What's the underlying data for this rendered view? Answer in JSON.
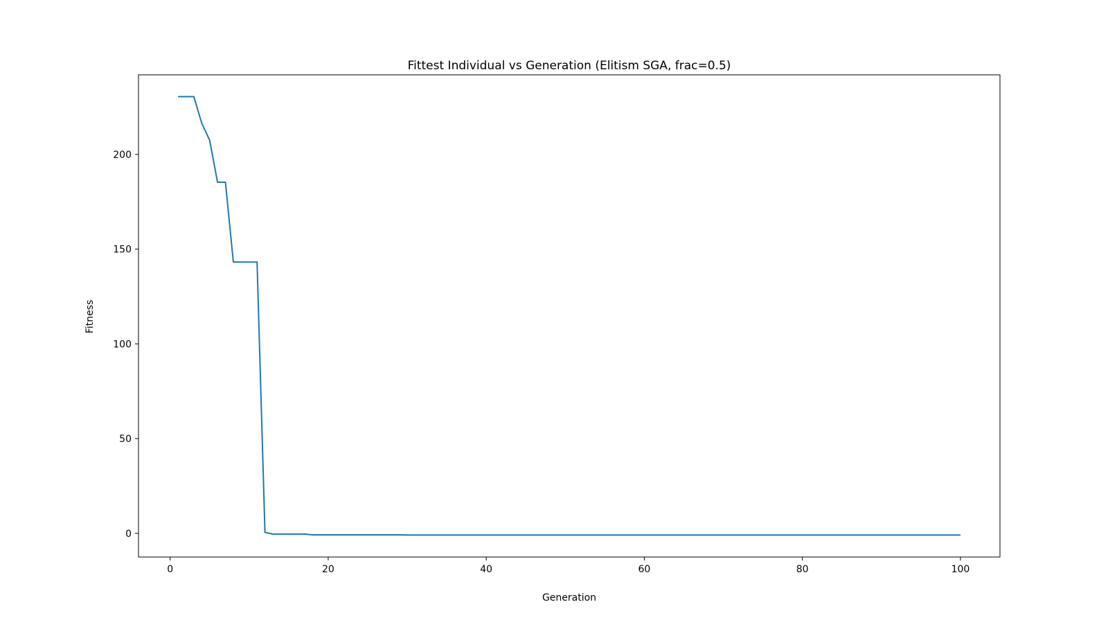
{
  "chart_data": {
    "type": "line",
    "title": "Fittest Individual vs Generation (Elitism SGA, frac=0.5)",
    "xlabel": "Generation",
    "ylabel": "Fitness",
    "xlim": [
      -4,
      105
    ],
    "ylim": [
      -12.5,
      242
    ],
    "xticks": [
      0,
      20,
      40,
      60,
      80,
      100
    ],
    "yticks": [
      0,
      50,
      100,
      150,
      200
    ],
    "grid": false,
    "series": [
      {
        "color": "#1f77b4",
        "x": [
          1,
          2,
          3,
          4,
          5,
          6,
          7,
          8,
          9,
          10,
          11,
          12,
          13,
          14,
          15,
          16,
          17,
          18,
          19,
          20,
          21,
          22,
          23,
          24,
          25,
          26,
          27,
          28,
          29,
          30,
          31,
          32,
          33,
          34,
          35,
          36,
          37,
          38,
          39,
          40,
          41,
          42,
          43,
          44,
          45,
          46,
          47,
          48,
          49,
          50,
          51,
          52,
          53,
          54,
          55,
          56,
          57,
          58,
          59,
          60,
          61,
          62,
          63,
          64,
          65,
          66,
          67,
          68,
          69,
          70,
          71,
          72,
          73,
          74,
          75,
          76,
          77,
          78,
          79,
          80,
          81,
          82,
          83,
          84,
          85,
          86,
          87,
          88,
          89,
          90,
          91,
          92,
          93,
          94,
          95,
          96,
          97,
          98,
          99,
          100
        ],
        "y": [
          230.5,
          230.5,
          230.5,
          216.5,
          207.5,
          185.3,
          185.3,
          143.2,
          143.2,
          143.2,
          143.2,
          0.5,
          -0.4,
          -0.4,
          -0.4,
          -0.4,
          -0.4,
          -0.8,
          -0.8,
          -0.8,
          -0.8,
          -0.8,
          -0.8,
          -0.8,
          -0.8,
          -0.8,
          -0.8,
          -0.8,
          -0.8,
          -0.9,
          -0.9,
          -0.9,
          -0.9,
          -0.9,
          -0.9,
          -0.9,
          -0.9,
          -0.9,
          -0.9,
          -0.9,
          -0.9,
          -0.9,
          -0.9,
          -0.9,
          -0.9,
          -0.9,
          -0.9,
          -0.9,
          -0.9,
          -0.9,
          -0.9,
          -0.9,
          -0.9,
          -0.9,
          -0.9,
          -0.9,
          -0.9,
          -0.9,
          -0.9,
          -0.9,
          -0.9,
          -0.9,
          -0.9,
          -0.9,
          -0.9,
          -0.9,
          -0.9,
          -0.9,
          -0.9,
          -0.9,
          -0.9,
          -0.9,
          -0.9,
          -0.9,
          -0.9,
          -0.9,
          -0.9,
          -0.9,
          -0.9,
          -0.9,
          -0.9,
          -0.9,
          -0.9,
          -0.9,
          -0.9,
          -0.9,
          -0.9,
          -0.9,
          -0.9,
          -0.9,
          -0.9,
          -0.9,
          -0.9,
          -0.9,
          -0.9,
          -0.9,
          -0.9,
          -0.9,
          -0.9,
          -0.9
        ]
      }
    ]
  }
}
